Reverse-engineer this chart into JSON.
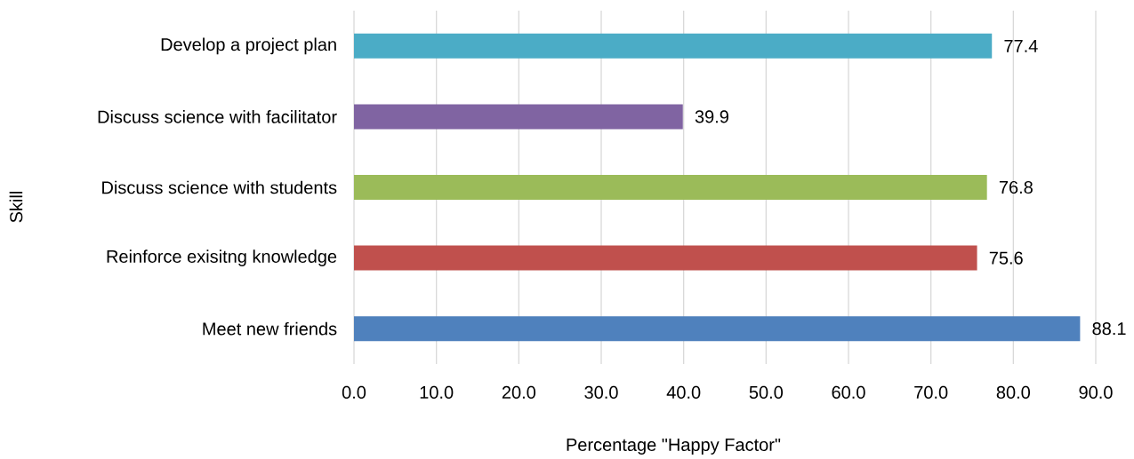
{
  "chart_data": {
    "type": "bar",
    "orientation": "horizontal",
    "xlabel": "Percentage \"Happy Factor\"",
    "ylabel": "Skill",
    "categories": [
      "Develop a project plan",
      "Discuss science with facilitator",
      "Discuss science with students",
      "Reinforce exisitng knowledge",
      "Meet new friends"
    ],
    "values": [
      77.4,
      39.9,
      76.8,
      75.6,
      88.1
    ],
    "value_labels": [
      "77.4",
      "39.9",
      "76.8",
      "75.6",
      "88.1"
    ],
    "colors": [
      "#4bacc6",
      "#8064a2",
      "#9bbb59",
      "#c0504d",
      "#4f81bd"
    ],
    "xlim": [
      0,
      90
    ],
    "xticks": [
      {
        "value": 0,
        "label": "0.0"
      },
      {
        "value": 10,
        "label": "10.0"
      },
      {
        "value": 20,
        "label": "20.0"
      },
      {
        "value": 30,
        "label": "30.0"
      },
      {
        "value": 40,
        "label": "40.0"
      },
      {
        "value": 50,
        "label": "50.0"
      },
      {
        "value": 60,
        "label": "60.0"
      },
      {
        "value": 70,
        "label": "70.0"
      },
      {
        "value": 80,
        "label": "80.0"
      },
      {
        "value": 90,
        "label": "90.0"
      }
    ],
    "grid": "x"
  }
}
